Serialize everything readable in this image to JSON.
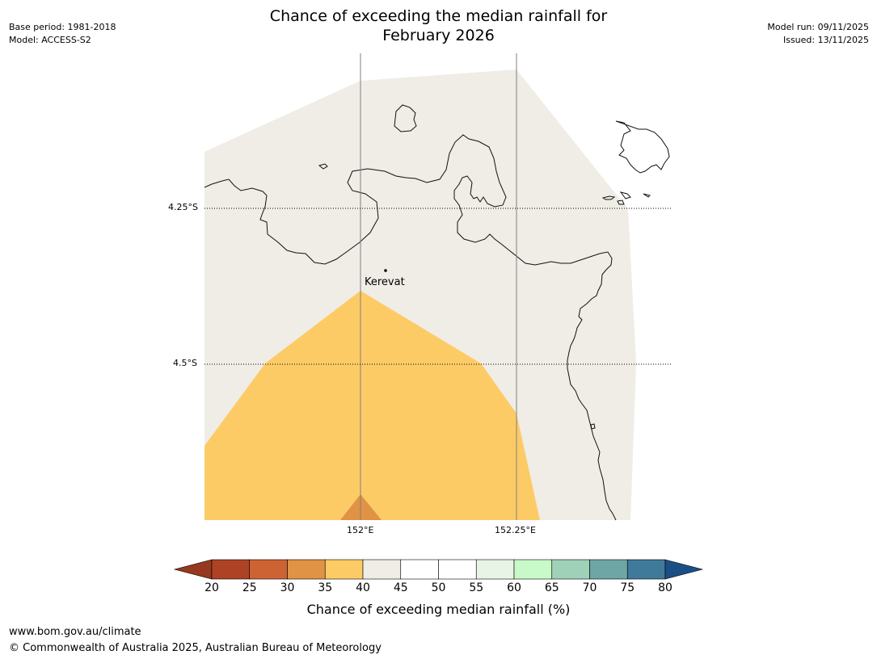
{
  "title_line1": "Chance of exceeding the median rainfall for",
  "title_line2": "February 2026",
  "meta_left": {
    "base_period": "Base period: 1981-2018",
    "model": "Model: ACCESS-S2"
  },
  "meta_right": {
    "model_run": "Model run: 09/11/2025",
    "issued": "Issued: 13/11/2025"
  },
  "map": {
    "lat_labels": [
      "4.25°S",
      "4.5°S"
    ],
    "lon_labels": [
      "152°E",
      "152.25°E"
    ],
    "place": {
      "name": "Kerevat"
    },
    "colors": {
      "band_40_45": "#f0ece6",
      "band_35_40": "#fdcb66",
      "band_30_35": "#e09245",
      "coast": "#111111",
      "grid": "#808080"
    }
  },
  "colorbar": {
    "ticks": [
      "20",
      "25",
      "30",
      "35",
      "40",
      "45",
      "50",
      "55",
      "60",
      "65",
      "70",
      "75",
      "80"
    ],
    "colors": [
      "#ad4324",
      "#cd6333",
      "#e09245",
      "#fdcb66",
      "#f0ece6",
      "#ffffff",
      "#ffffff",
      "#e8f5e6",
      "#c8f9c8",
      "#9ed1b8",
      "#6ea5a5",
      "#3f7a9a"
    ],
    "under_color": "#96391e",
    "over_color": "#1b4e85",
    "label": "Chance of exceeding median rainfall (%)"
  },
  "footer": {
    "url": "www.bom.gov.au/climate",
    "copyright": "© Commonwealth of Australia 2025, Australian Bureau of Meteorology"
  }
}
